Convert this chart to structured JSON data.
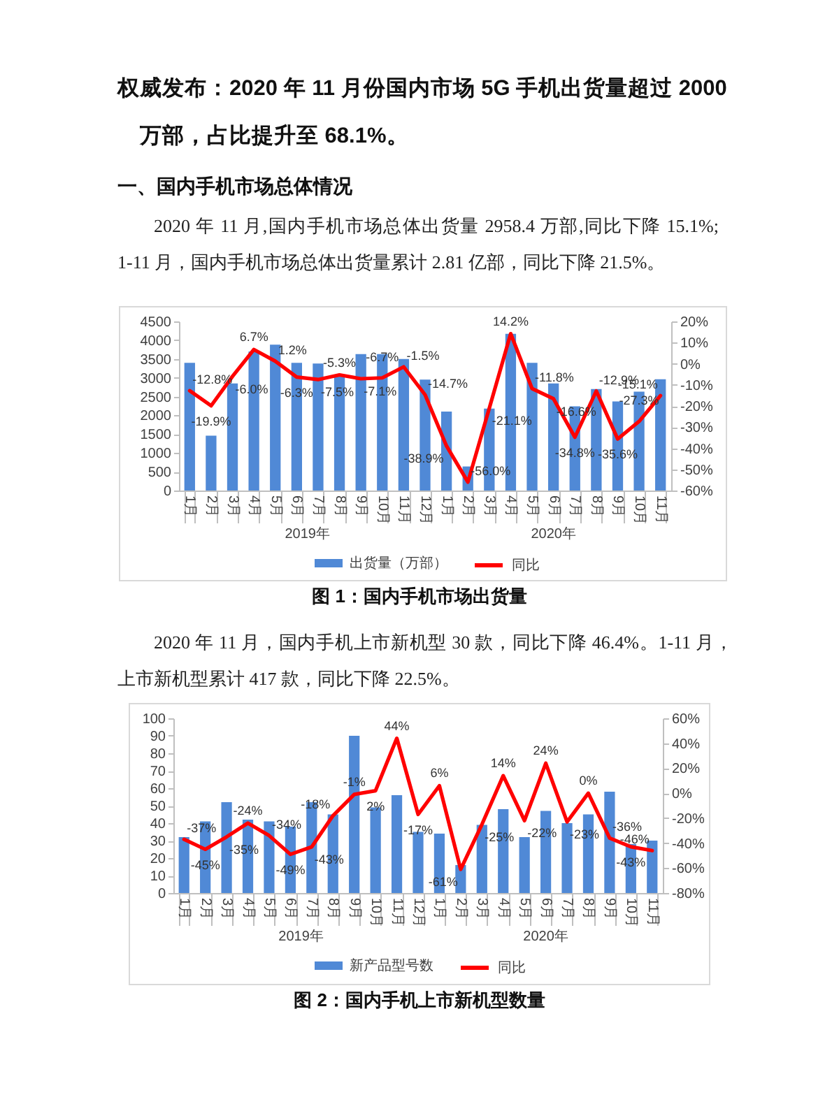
{
  "chart_data": [
    {
      "type": "bar",
      "title": "图 1：国内手机市场出货量",
      "subtitle": "2020 年 11 月,国内手机市场总体出货量 2958.4 万部,同比下降 15.1%;1-11 月，国内手机市场总体出货量累计 2.81 亿部，同比下降 21.5%。",
      "annotations": [
        "权威发布：2020 年 11 月份国内市场 5G 手机出货量超过 2000 万部，占比提升至 68.1%。",
        "一、国内手机市场总体情况",
        "2019年",
        "2020年"
      ],
      "categories": [
        "1月",
        "2月",
        "3月",
        "4月",
        "5月",
        "6月",
        "7月",
        "8月",
        "9月",
        "10月",
        "11月",
        "12月",
        "1月",
        "2月",
        "3月",
        "4月",
        "5月",
        "6月",
        "7月",
        "8月",
        "9月",
        "10月",
        "11月"
      ],
      "series": [
        {
          "name": "出货量（万部）",
          "color": "#5089d6",
          "values": [
            3400,
            1460,
            2850,
            3700,
            3880,
            3400,
            3380,
            3040,
            3630,
            3630,
            3500,
            2950,
            2100,
            640,
            2180,
            4170,
            3400,
            2850,
            2240,
            2700,
            2370,
            2630,
            2960
          ]
        },
        {
          "name": "同比",
          "type": "line",
          "axis": "y2",
          "color": "#ff0000",
          "values": [
            -12.8,
            -19.9,
            -6.0,
            6.7,
            1.2,
            -6.3,
            -7.5,
            -5.3,
            -7.1,
            -6.7,
            -1.5,
            -14.7,
            -38.9,
            -56.0,
            -21.1,
            14.2,
            -11.8,
            -16.6,
            -34.8,
            -12.9,
            -35.6,
            -27.3,
            -15.1
          ],
          "value_labels": [
            "-12.8%",
            "-19.9%",
            "-6.0%",
            "6.7%",
            "1.2%",
            "-6.3%",
            "-7.5%",
            "-5.3%",
            "-7.1%",
            "-6.7%",
            "-1.5%",
            "-14.7%",
            "-38.9%",
            "-56.0%",
            "-21.1%",
            "14.2%",
            "-11.8%",
            "-16.6%",
            "-34.8%",
            "-12.9%",
            "-35.6%",
            "-27.3%",
            "-15.1%"
          ]
        }
      ],
      "ylim": [
        0,
        4500
      ],
      "yticks": [
        0,
        500,
        1000,
        1500,
        2000,
        2500,
        3000,
        3500,
        4000,
        4500
      ],
      "y2lim": [
        -60,
        20
      ],
      "y2ticks": [
        {
          "value": -60,
          "label": "-60%"
        },
        {
          "value": -50,
          "label": "-50%"
        },
        {
          "value": -40,
          "label": "-40%"
        },
        {
          "value": -30,
          "label": "-30%"
        },
        {
          "value": -20,
          "label": "-20%"
        },
        {
          "value": -10,
          "label": "-10%"
        },
        {
          "value": 0,
          "label": "0%"
        },
        {
          "value": 10,
          "label": "10%"
        },
        {
          "value": 20,
          "label": "20%"
        }
      ],
      "legend": "bottom"
    },
    {
      "type": "bar",
      "title": "图 2：国内手机上市新机型数量",
      "subtitle": "2020 年 11 月，国内手机上市新机型 30 款，同比下降 46.4%。1-11 月，上市新机型累计 417 款，同比下降 22.5%。",
      "annotations": [
        "2019年",
        "2020年"
      ],
      "categories": [
        "1月",
        "2月",
        "3月",
        "4月",
        "5月",
        "6月",
        "7月",
        "8月",
        "9月",
        "10月",
        "11月",
        "12月",
        "1月",
        "2月",
        "3月",
        "4月",
        "5月",
        "6月",
        "7月",
        "8月",
        "9月",
        "10月",
        "11月"
      ],
      "series": [
        {
          "name": "新产品型号数",
          "color": "#5089d6",
          "values": [
            32,
            41,
            52,
            42,
            41,
            38,
            52,
            45,
            90,
            49,
            56,
            35,
            34,
            16,
            39,
            48,
            32,
            47,
            40,
            45,
            58,
            28,
            30
          ]
        },
        {
          "name": "同比",
          "type": "line",
          "axis": "y2",
          "color": "#ff0000",
          "values": [
            -37,
            -45,
            -35,
            -24,
            -34,
            -49,
            -43,
            -18,
            -1,
            2,
            44,
            -17,
            6,
            -61,
            -25,
            14,
            -22,
            24,
            -23,
            0,
            -36,
            -43,
            -46
          ],
          "value_labels": [
            "-37%",
            "-45%",
            "-35%",
            "-24%",
            "-34%",
            "-49%",
            "-43%",
            "-18%",
            "-1%",
            "2%",
            "44%",
            "-17%",
            "6%",
            "-61%",
            "-25%",
            "14%",
            "-22%",
            "24%",
            "-23%",
            "0%",
            "-36%",
            "-43%",
            "-46%"
          ]
        }
      ],
      "ylim": [
        0,
        100
      ],
      "yticks": [
        0,
        10,
        20,
        30,
        40,
        50,
        60,
        70,
        80,
        90,
        100
      ],
      "y2lim": [
        -80,
        60
      ],
      "y2ticks": [
        {
          "value": -80,
          "label": "-80%"
        },
        {
          "value": -60,
          "label": "-60%"
        },
        {
          "value": -40,
          "label": "-40%"
        },
        {
          "value": -20,
          "label": "-20%"
        },
        {
          "value": 0,
          "label": "0%"
        },
        {
          "value": 20,
          "label": "20%"
        },
        {
          "value": 40,
          "label": "40%"
        },
        {
          "value": 60,
          "label": "60%"
        }
      ],
      "legend": "bottom"
    }
  ]
}
